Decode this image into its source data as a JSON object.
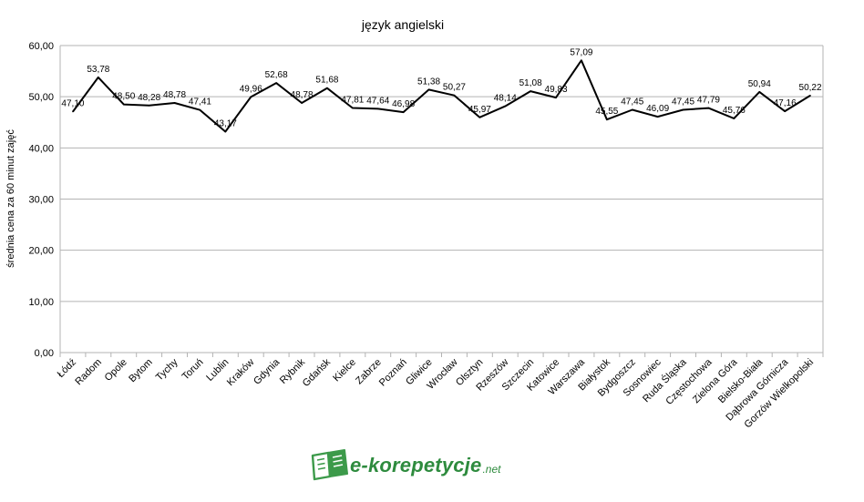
{
  "chart_data": {
    "type": "line",
    "title": "język angielski",
    "ylabel": "średnia cena za 60 minut zajęć",
    "xlabel": "",
    "ylim": [
      0,
      60
    ],
    "yticks": [
      "0,00",
      "10,00",
      "20,00",
      "30,00",
      "40,00",
      "50,00",
      "60,00"
    ],
    "grid": true,
    "line_color": "#000000",
    "grid_color": "#b3b3b3",
    "categories": [
      "Łódź",
      "Radom",
      "Opole",
      "Bytom",
      "Tychy",
      "Toruń",
      "Lublin",
      "Kraków",
      "Gdynia",
      "Rybnik",
      "Gdańsk",
      "Kielce",
      "Zabrze",
      "Poznań",
      "Gliwice",
      "Wrocław",
      "Olsztyn",
      "Rzeszów",
      "Szczecin",
      "Katowice",
      "Warszawa",
      "Białystok",
      "Bydgoszcz",
      "Sosnowiec",
      "Ruda Śląska",
      "Częstochowa",
      "Zielona Góra",
      "Bielsko-Biała",
      "Dąbrowa Górnicza",
      "Gorzów Wielkopolski"
    ],
    "values": [
      47.1,
      53.78,
      48.5,
      48.28,
      48.78,
      47.41,
      43.17,
      49.96,
      52.68,
      48.78,
      51.68,
      47.81,
      47.64,
      46.98,
      51.38,
      50.27,
      45.97,
      48.14,
      51.08,
      49.83,
      57.09,
      45.55,
      47.45,
      46.09,
      47.45,
      47.79,
      45.76,
      50.94,
      47.16,
      50.22
    ],
    "value_labels": [
      "47,10",
      "53,78",
      "48,50",
      "48,28",
      "48,78",
      "47,41",
      "43,17",
      "49,96",
      "52,68",
      "48,78",
      "51,68",
      "47,81",
      "47,64",
      "46,98",
      "51,38",
      "50,27",
      "45,97",
      "48,14",
      "51,08",
      "49,83",
      "57,09",
      "45,55",
      "47,45",
      "46,09",
      "47,45",
      "47,79",
      "45,76",
      "50,94",
      "47,16",
      "50,22"
    ]
  },
  "watermark": {
    "brand": "e-korepetycje",
    "suffix": ".net",
    "color": "#2e8b3e",
    "icon": "open-book-icon"
  }
}
